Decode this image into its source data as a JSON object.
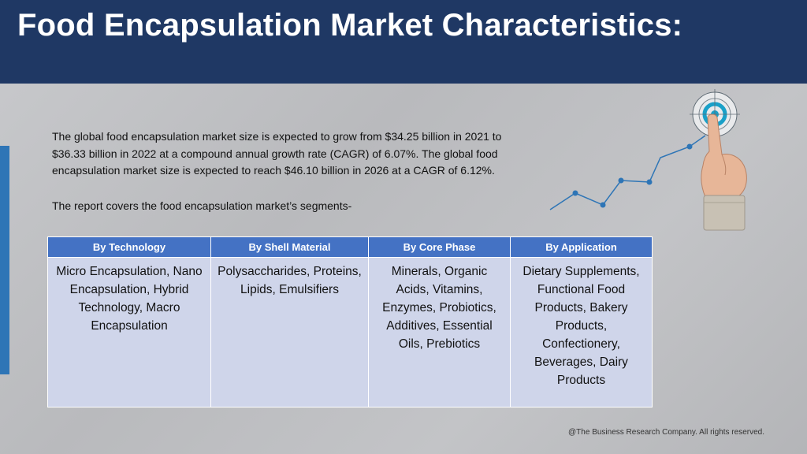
{
  "header": {
    "title": "Food Encapsulation Market Characteristics:"
  },
  "intro": {
    "paragraph": "The global food encapsulation market size is expected to grow from $34.25 billion in 2021 to $36.33 billion in 2022 at a compound annual growth rate (CAGR) of 6.07%. The global food encapsulation market size is expected to reach $46.10 billion in 2026 at a CAGR of 6.12%.",
    "segments_line": "The report covers the food encapsulation market’s segments-"
  },
  "table": {
    "headers": [
      "By Technology",
      "By Shell Material",
      "By Core Phase",
      "By Application"
    ],
    "cells": [
      "Micro Encapsulation, Nano Encapsulation, Hybrid Technology, Macro Encapsulation",
      "Polysaccharides, Proteins, Lipids, Emulsifiers",
      "Minerals, Organic Acids, Vitamins, Enzymes, Probiotics, Additives, Essential Oils, Prebiotics",
      "Dietary Supplements, Functional Food Products, Bakery Products, Confectionery, Beverages, Dairy Products"
    ]
  },
  "graphic": {
    "icon": "target-touch-growth-icon",
    "accent": "#2e75b6",
    "target_color": "#1aa0c8"
  },
  "footer": {
    "copyright": "@The Business Research Company. All rights reserved."
  }
}
